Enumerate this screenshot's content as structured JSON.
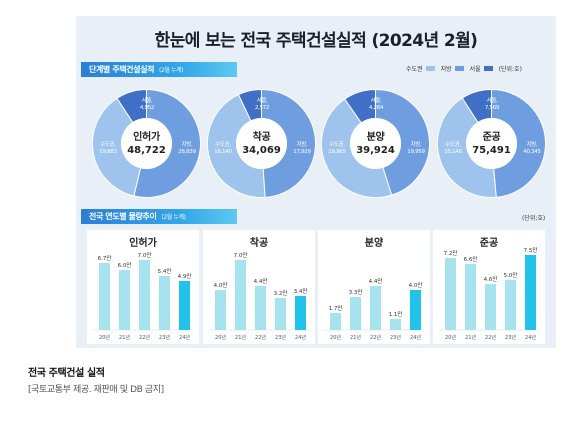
{
  "title": "한눈에 보는 전국 주택건설실적 (2024년 2월)",
  "section1": {
    "label": "단계별 주택건설실적",
    "sub": "(2월 누계)"
  },
  "section2": {
    "label": "전국 연도별 물량추이",
    "sub": "(2월 누계)"
  },
  "legend": [
    {
      "label": "수도권",
      "color": "#9ec3ec"
    },
    {
      "label": "지방",
      "color": "#6e9de0"
    },
    {
      "label": "서울",
      "color": "#3f6fc6"
    }
  ],
  "unit1": "(단위:호)",
  "unit2": "(단위:호)",
  "colors": {
    "metro": "#9ec3ec",
    "local": "#6e9de0",
    "seoul": "#3f6fc6",
    "bar_light": "#a6e3ef",
    "bar_highlight": "#22c3ea"
  },
  "chart_data": [
    {
      "type": "pie",
      "title": "인허가",
      "total": "48,722",
      "slices": [
        {
          "name": "서울,",
          "value": 4952,
          "label": "4,952"
        },
        {
          "name": "수도권,",
          "value": 19883,
          "label": "19,883"
        },
        {
          "name": "지방,",
          "value": 28839,
          "label": "28,839"
        }
      ]
    },
    {
      "type": "pie",
      "title": "착공",
      "total": "34,069",
      "slices": [
        {
          "name": "서울,",
          "value": 2572,
          "label": "2,572"
        },
        {
          "name": "수도권,",
          "value": 16140,
          "label": "16,140"
        },
        {
          "name": "지방,",
          "value": 17929,
          "label": "17,929"
        }
      ]
    },
    {
      "type": "pie",
      "title": "분양",
      "total": "39,924",
      "slices": [
        {
          "name": "서울,",
          "value": 4264,
          "label": "4,264"
        },
        {
          "name": "수도권,",
          "value": 19965,
          "label": "19,965"
        },
        {
          "name": "지방,",
          "value": 19959,
          "label": "19,959"
        }
      ]
    },
    {
      "type": "pie",
      "title": "준공",
      "total": "75,491",
      "slices": [
        {
          "name": "서울,",
          "value": 7569,
          "label": "7,569"
        },
        {
          "name": "수도권,",
          "value": 35146,
          "label": "35,146"
        },
        {
          "name": "지방,",
          "value": 40345,
          "label": "40,345"
        }
      ]
    },
    {
      "type": "bar",
      "title": "인허가",
      "categories": [
        "20년",
        "21년",
        "22년",
        "23년",
        "24년"
      ],
      "values": [
        6.7,
        6.0,
        7.0,
        5.4,
        4.9
      ],
      "labels": [
        "6.7만",
        "6.0만",
        "7.0만",
        "5.4만",
        "4.9만"
      ]
    },
    {
      "type": "bar",
      "title": "착공",
      "categories": [
        "20년",
        "21년",
        "22년",
        "23년",
        "24년"
      ],
      "values": [
        4.0,
        7.0,
        4.4,
        3.2,
        3.4
      ],
      "labels": [
        "4.0만",
        "7.0만",
        "4.4만",
        "3.2만",
        "3.4만"
      ]
    },
    {
      "type": "bar",
      "title": "분양",
      "categories": [
        "20년",
        "21년",
        "22년",
        "23년",
        "24년"
      ],
      "values": [
        1.7,
        3.3,
        4.4,
        1.1,
        4.0
      ],
      "labels": [
        "1.7만",
        "3.3만",
        "4.4만",
        "1.1만",
        "4.0만"
      ]
    },
    {
      "type": "bar",
      "title": "준공",
      "categories": [
        "20년",
        "21년",
        "22년",
        "23년",
        "24년"
      ],
      "values": [
        7.2,
        6.6,
        4.6,
        5.0,
        7.5
      ],
      "labels": [
        "7.2만",
        "6.6만",
        "4.6만",
        "5.0만",
        "7.5만"
      ]
    }
  ],
  "caption": {
    "title": "전국 주택건설 실적",
    "source": "[국토교통부 제공. 재판매 및 DB 금지]"
  }
}
